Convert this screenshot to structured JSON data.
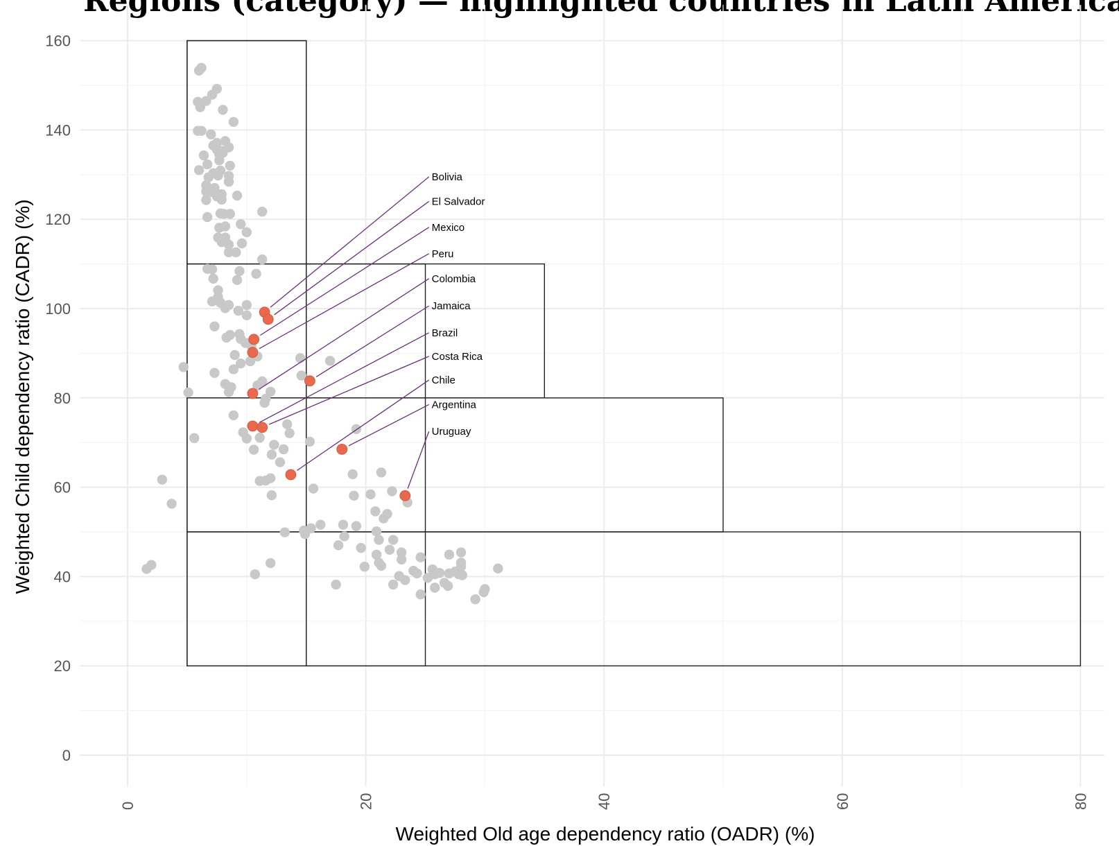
{
  "chart_data": {
    "type": "scatter",
    "title": "Regions (category) — highlighted countries in Latin America",
    "xlabel": "Weighted Old age dependency ratio (OADR) (%)",
    "ylabel": "Weighted Child dependency ratio (CADR) (%)",
    "xlim": [
      -4,
      82
    ],
    "ylim": [
      -7,
      168
    ],
    "x_ticks": [
      "0",
      "20",
      "40",
      "60",
      "80"
    ],
    "y_ticks": [
      "0",
      "20",
      "40",
      "60",
      "80",
      "100",
      "120",
      "140",
      "160"
    ],
    "grid": true,
    "colors": {
      "other": "#c8c8c8",
      "highlight": "#e8694d",
      "leader": "#6b2f7a"
    },
    "boxes": [
      {
        "x0": 5,
        "x1": 15,
        "y0": 110,
        "y1": 160
      },
      {
        "x0": 5,
        "x1": 35,
        "y0": 80,
        "y1": 110
      },
      {
        "x0": 5,
        "x1": 50,
        "y0": 50,
        "y1": 80
      },
      {
        "x0": 5,
        "x1": 80,
        "y0": 20,
        "y1": 50
      },
      {
        "x0": 5,
        "x1": 15,
        "y0": 20,
        "y1": 160
      },
      {
        "x0": 15,
        "x1": 25,
        "y0": 20,
        "y1": 110
      }
    ],
    "highlighted": [
      {
        "name": "Bolivia",
        "x": 11.5,
        "y": 99.2,
        "label_y": 129.5
      },
      {
        "name": "El Salvador",
        "x": 11.8,
        "y": 97.6,
        "label_y": 124
      },
      {
        "name": "Mexico",
        "x": 10.6,
        "y": 93.1,
        "label_y": 118.2
      },
      {
        "name": "Peru",
        "x": 10.5,
        "y": 90.2,
        "label_y": 112.3
      },
      {
        "name": "Colombia",
        "x": 10.5,
        "y": 81.0,
        "label_y": 106.7
      },
      {
        "name": "Jamaica",
        "x": 15.3,
        "y": 83.8,
        "label_y": 100.6
      },
      {
        "name": "Brazil",
        "x": 10.5,
        "y": 73.7,
        "label_y": 94.6
      },
      {
        "name": "Costa Rica",
        "x": 11.3,
        "y": 73.4,
        "label_y": 89.3
      },
      {
        "name": "Chile",
        "x": 13.7,
        "y": 62.8,
        "label_y": 84.0
      },
      {
        "name": "Argentina",
        "x": 18.0,
        "y": 68.5,
        "label_y": 78.5
      },
      {
        "name": "Uruguay",
        "x": 23.3,
        "y": 58.1,
        "label_y": 72.5
      }
    ],
    "others": [
      [
        6.0,
        153.3
      ],
      [
        6.2,
        153.9
      ],
      [
        7.5,
        149.2
      ],
      [
        7.1,
        147.9
      ],
      [
        5.9,
        146.3
      ],
      [
        6.6,
        146.5
      ],
      [
        6.1,
        145.1
      ],
      [
        8.0,
        144.5
      ],
      [
        8.9,
        141.8
      ],
      [
        5.9,
        139.8
      ],
      [
        6.2,
        139.8
      ],
      [
        7.0,
        139.0
      ],
      [
        7.5,
        137.1
      ],
      [
        8.2,
        137.5
      ],
      [
        7.2,
        136.5
      ],
      [
        7.5,
        135.6
      ],
      [
        8.5,
        136.1
      ],
      [
        7.9,
        135.3
      ],
      [
        6.4,
        134.3
      ],
      [
        7.7,
        134.5
      ],
      [
        8.0,
        134.9
      ],
      [
        7.7,
        133.2
      ],
      [
        6.7,
        132.3
      ],
      [
        7.8,
        130.9
      ],
      [
        8.6,
        132.0
      ],
      [
        6.0,
        131.0
      ],
      [
        7.2,
        130.3
      ],
      [
        7.6,
        129.8
      ],
      [
        8.5,
        129.7
      ],
      [
        6.8,
        129.4
      ],
      [
        8.5,
        128.4
      ],
      [
        6.6,
        127.6
      ],
      [
        7.3,
        127.0
      ],
      [
        7.5,
        125.7
      ],
      [
        7.9,
        125.6
      ],
      [
        7.5,
        125.1
      ],
      [
        7.0,
        126.1
      ],
      [
        6.6,
        126.2
      ],
      [
        9.2,
        125.3
      ],
      [
        6.6,
        124.3
      ],
      [
        7.9,
        124.4
      ],
      [
        6.7,
        120.5
      ],
      [
        8.1,
        121.2
      ],
      [
        7.8,
        121.3
      ],
      [
        8.6,
        121.2
      ],
      [
        11.3,
        121.7
      ],
      [
        9.5,
        118.9
      ],
      [
        8.2,
        118.4
      ],
      [
        7.7,
        118.1
      ],
      [
        10.0,
        117.1
      ],
      [
        7.6,
        115.9
      ],
      [
        7.9,
        115.6
      ],
      [
        8.2,
        115.9
      ],
      [
        7.9,
        114.9
      ],
      [
        8.5,
        114.3
      ],
      [
        9.6,
        114.6
      ],
      [
        8.5,
        112.6
      ],
      [
        9.1,
        112.6
      ],
      [
        11.3,
        111.0
      ],
      [
        6.7,
        108.9
      ],
      [
        7.1,
        108.8
      ],
      [
        9.4,
        108.4
      ],
      [
        10.8,
        107.8
      ],
      [
        7.2,
        106.7
      ],
      [
        9.2,
        106.4
      ],
      [
        7.6,
        104.1
      ],
      [
        7.6,
        102.6
      ],
      [
        7.1,
        101.6
      ],
      [
        7.8,
        101.3
      ],
      [
        8.5,
        100.8
      ],
      [
        10.0,
        100.8
      ],
      [
        8.2,
        100.1
      ],
      [
        9.3,
        99.5
      ],
      [
        10.0,
        98.5
      ],
      [
        7.3,
        96.0
      ],
      [
        8.6,
        94.1
      ],
      [
        9.4,
        94.3
      ],
      [
        8.3,
        93.5
      ],
      [
        9.5,
        93.2
      ],
      [
        9.9,
        92.3
      ],
      [
        10.4,
        91.7
      ],
      [
        9.0,
        89.6
      ],
      [
        10.9,
        89.3
      ],
      [
        14.5,
        88.9
      ],
      [
        10.3,
        88.2
      ],
      [
        9.5,
        87.7
      ],
      [
        4.7,
        86.9
      ],
      [
        17.0,
        88.3
      ],
      [
        8.9,
        86.4
      ],
      [
        7.3,
        85.6
      ],
      [
        14.6,
        85.0
      ],
      [
        11.3,
        83.7
      ],
      [
        8.7,
        82.4
      ],
      [
        8.2,
        83.1
      ],
      [
        10.9,
        82.8
      ],
      [
        12.0,
        81.4
      ],
      [
        5.1,
        81.2
      ],
      [
        8.5,
        81.3
      ],
      [
        11.6,
        79.8
      ],
      [
        11.5,
        78.9
      ],
      [
        8.9,
        76.1
      ],
      [
        13.4,
        74.1
      ],
      [
        19.2,
        73.0
      ],
      [
        9.7,
        72.3
      ],
      [
        13.6,
        72.1
      ],
      [
        11.1,
        71.1
      ],
      [
        5.6,
        71.0
      ],
      [
        10.0,
        70.9
      ],
      [
        15.3,
        70.2
      ],
      [
        12.3,
        69.5
      ],
      [
        13.1,
        68.5
      ],
      [
        10.6,
        68.4
      ],
      [
        12.1,
        67.3
      ],
      [
        12.8,
        65.6
      ],
      [
        21.3,
        63.3
      ],
      [
        18.9,
        62.9
      ],
      [
        11.1,
        61.4
      ],
      [
        11.6,
        61.5
      ],
      [
        12.0,
        62.0
      ],
      [
        2.9,
        61.7
      ],
      [
        15.6,
        59.7
      ],
      [
        22.2,
        59.1
      ],
      [
        20.4,
        58.4
      ],
      [
        19.0,
        58.1
      ],
      [
        12.1,
        58.2
      ],
      [
        3.7,
        56.3
      ],
      [
        23.5,
        56.6
      ],
      [
        21.8,
        54.0
      ],
      [
        20.8,
        54.6
      ],
      [
        21.5,
        53.0
      ],
      [
        22.3,
        48.2
      ],
      [
        18.1,
        51.6
      ],
      [
        19.2,
        51.3
      ],
      [
        16.2,
        51.6
      ],
      [
        15.4,
        50.8
      ],
      [
        14.8,
        50.3
      ],
      [
        14.9,
        49.5
      ],
      [
        13.2,
        49.9
      ],
      [
        20.9,
        50.1
      ],
      [
        21.1,
        48.2
      ],
      [
        18.2,
        49.0
      ],
      [
        17.7,
        47.0
      ],
      [
        19.6,
        46.4
      ],
      [
        22.0,
        46.0
      ],
      [
        23.0,
        45.4
      ],
      [
        27.0,
        44.9
      ],
      [
        28.0,
        45.4
      ],
      [
        24.6,
        44.3
      ],
      [
        23.0,
        43.8
      ],
      [
        20.9,
        44.9
      ],
      [
        21.1,
        43.1
      ],
      [
        21.3,
        42.4
      ],
      [
        19.9,
        42.2
      ],
      [
        28.0,
        43.1
      ],
      [
        28.0,
        42.2
      ],
      [
        25.6,
        41.6
      ],
      [
        26.2,
        40.8
      ],
      [
        25.8,
        40.5
      ],
      [
        27.5,
        41.1
      ],
      [
        27.8,
        40.5
      ],
      [
        27.0,
        40.7
      ],
      [
        25.2,
        39.7
      ],
      [
        28.1,
        40.3
      ],
      [
        24.0,
        41.3
      ],
      [
        24.3,
        40.7
      ],
      [
        31.1,
        41.8
      ],
      [
        22.8,
        40.1
      ],
      [
        23.3,
        39.2
      ],
      [
        26.6,
        38.6
      ],
      [
        26.9,
        37.9
      ],
      [
        25.8,
        37.5
      ],
      [
        22.3,
        38.2
      ],
      [
        17.5,
        38.2
      ],
      [
        24.6,
        36.0
      ],
      [
        29.9,
        36.5
      ],
      [
        30.0,
        37.2
      ],
      [
        29.2,
        34.9
      ],
      [
        12.0,
        43.0
      ],
      [
        10.7,
        40.5
      ],
      [
        1.6,
        41.7
      ],
      [
        2.0,
        42.6
      ]
    ]
  }
}
